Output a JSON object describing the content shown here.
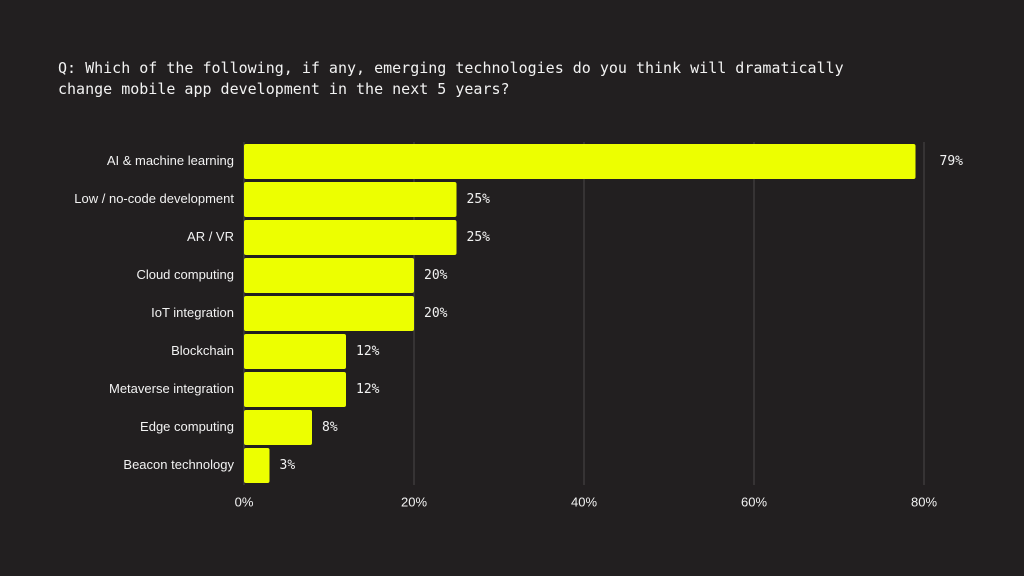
{
  "question": {
    "line1": "Q: Which of the following, if any, emerging technologies do you think will dramatically",
    "line2": "change mobile app development in the next 5 years?"
  },
  "chart_data": {
    "type": "bar",
    "orientation": "horizontal",
    "categories": [
      "AI & machine learning",
      "Low / no-code development",
      "AR / VR",
      "Cloud computing",
      "IoT integration",
      "Blockchain",
      "Metaverse integration",
      "Edge computing",
      "Beacon technology"
    ],
    "values": [
      79,
      25,
      25,
      20,
      20,
      12,
      12,
      8,
      3
    ],
    "value_labels": [
      "79%",
      "25%",
      "25%",
      "20%",
      "20%",
      "12%",
      "12%",
      "8%",
      "3%"
    ],
    "xlim": [
      0,
      80
    ],
    "xticks": [
      0,
      20,
      40,
      60,
      80
    ],
    "xtick_labels": [
      "0%",
      "20%",
      "40%",
      "60%",
      "80%"
    ],
    "grid": true,
    "bar_color": "#edff00",
    "grid_color": "#4a4748"
  }
}
